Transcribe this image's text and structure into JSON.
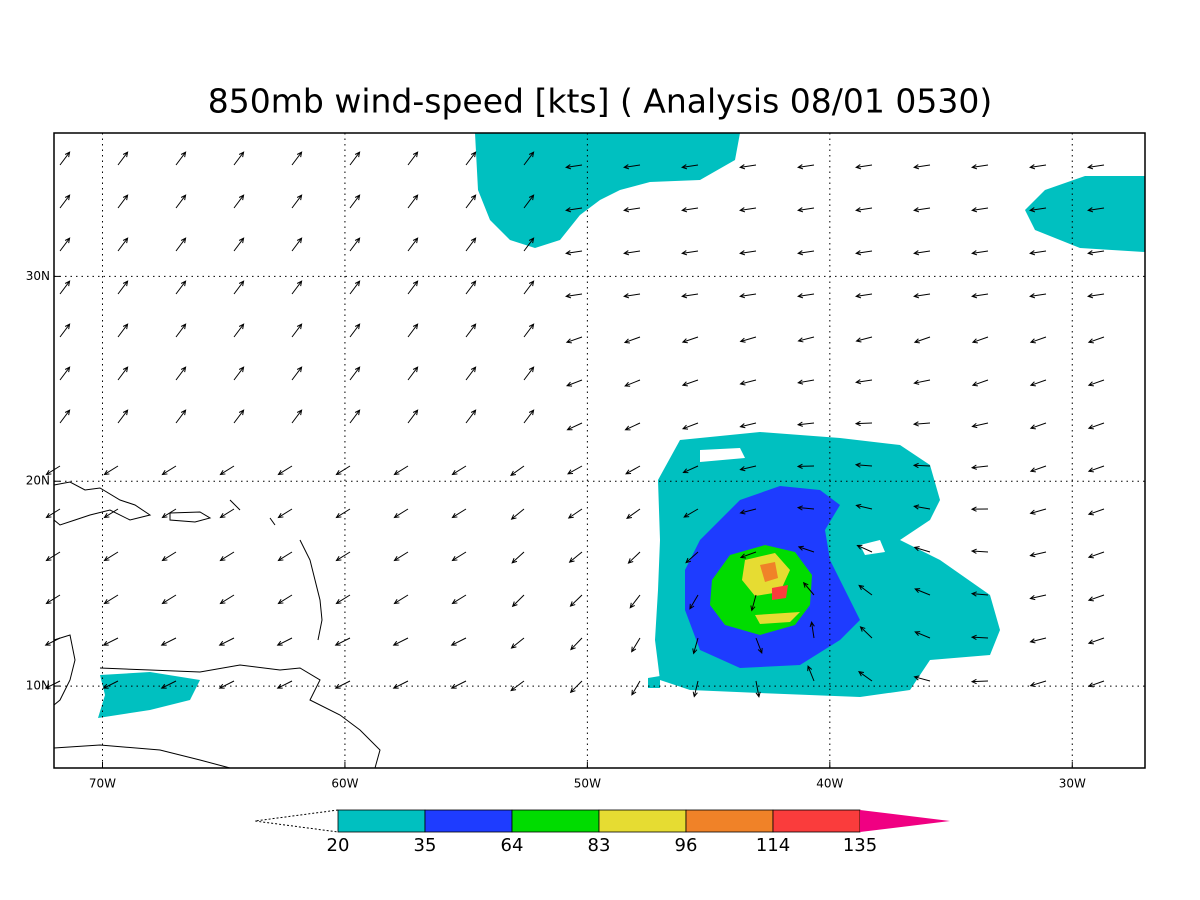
{
  "map": {
    "title": "850mb wind-speed [kts] (  Analysis  08/01 0530)",
    "xlim": [
      -72,
      -27
    ],
    "ylim": [
      6,
      37
    ],
    "xticks": [
      {
        "value": -70,
        "label": "70W"
      },
      {
        "value": -60,
        "label": "60W"
      },
      {
        "value": -50,
        "label": "50W"
      },
      {
        "value": -40,
        "label": "40W"
      },
      {
        "value": -30,
        "label": "30W"
      }
    ],
    "yticks": [
      {
        "value": 10,
        "label": "10N"
      },
      {
        "value": 20,
        "label": "20N"
      },
      {
        "value": 30,
        "label": "30N"
      }
    ],
    "grid": true,
    "colorbar": {
      "levels": [
        20,
        35,
        64,
        83,
        96,
        114,
        135
      ],
      "colors": [
        "#00c0c0",
        "#1e3cff",
        "#00dc00",
        "#e6dc32",
        "#f08228",
        "#fa3c3c",
        "#f00082"
      ]
    }
  }
}
